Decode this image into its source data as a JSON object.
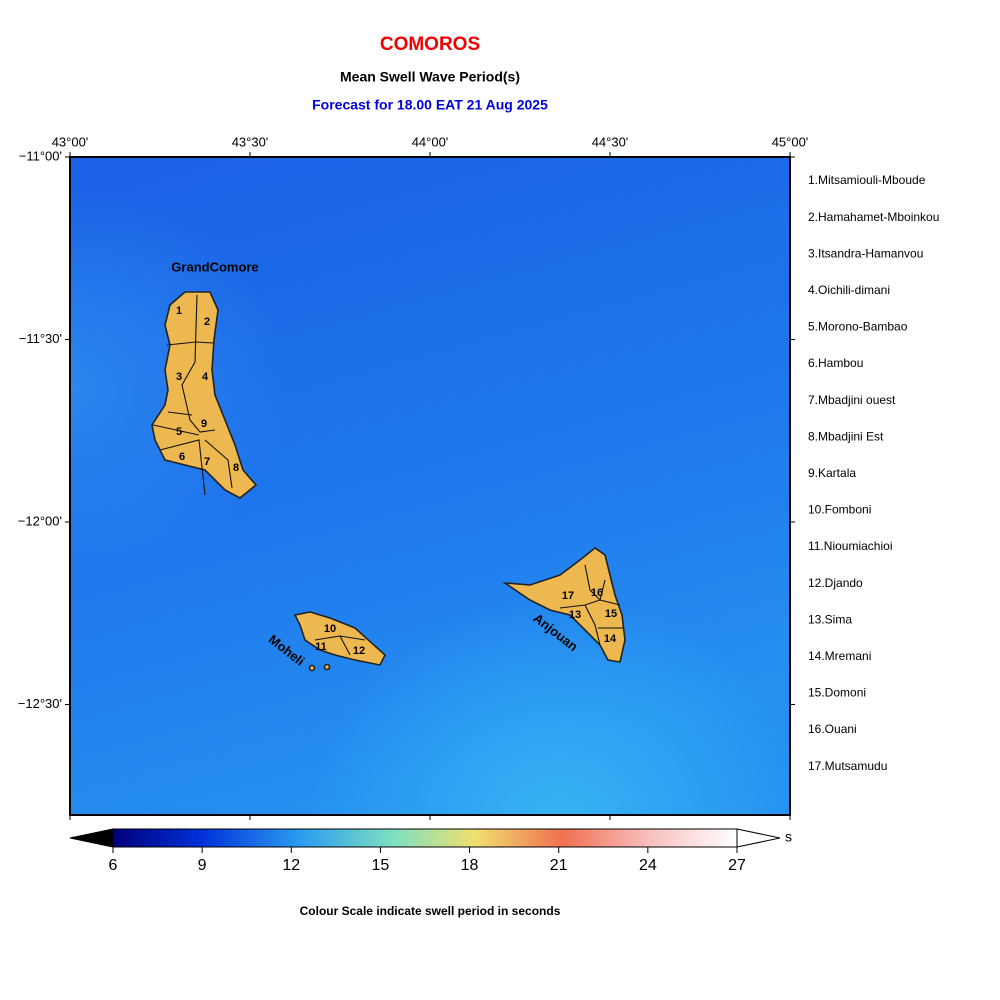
{
  "header": {
    "title": "COMOROS",
    "subtitle": "Mean Swell Wave Period(s)",
    "forecast": "Forecast for  18.00 EAT 21 Aug 2025"
  },
  "map": {
    "lon_ticks": [
      "43°00'",
      "43°30'",
      "44°00'",
      "44°30'",
      "45°00'"
    ],
    "lat_ticks": [
      "−11°00'",
      "−11°30'",
      "−12°00'",
      "−12°30'"
    ],
    "islands": [
      "GrandComore",
      "Moheli",
      "Anjouan"
    ],
    "regions": [
      "1",
      "2",
      "3",
      "4",
      "5",
      "6",
      "7",
      "8",
      "9",
      "10",
      "11",
      "12",
      "13",
      "14",
      "15",
      "16",
      "17"
    ]
  },
  "legend": [
    "1.Mitsamiouli-Mboude",
    "2.Hamahamet-Mboinkou",
    "3.Itsandra-Hamanvou",
    "4.Oichili-dimani",
    "5.Morono-Bambao",
    "6.Hambou",
    "7.Mbadjini ouest",
    "8.Mbadjini Est",
    "9.Kartala",
    "10.Fomboni",
    "11.Nioumiachioi",
    "12.Djando",
    "13.Sima",
    "14.Mremani",
    "15.Domoni",
    "16.Ouani",
    "17.Mutsamudu"
  ],
  "colorbar": {
    "ticks": [
      "6",
      "9",
      "12",
      "15",
      "18",
      "21",
      "24",
      "27"
    ],
    "unit": "s",
    "caption": "Colour Scale indicate swell period in seconds"
  }
}
